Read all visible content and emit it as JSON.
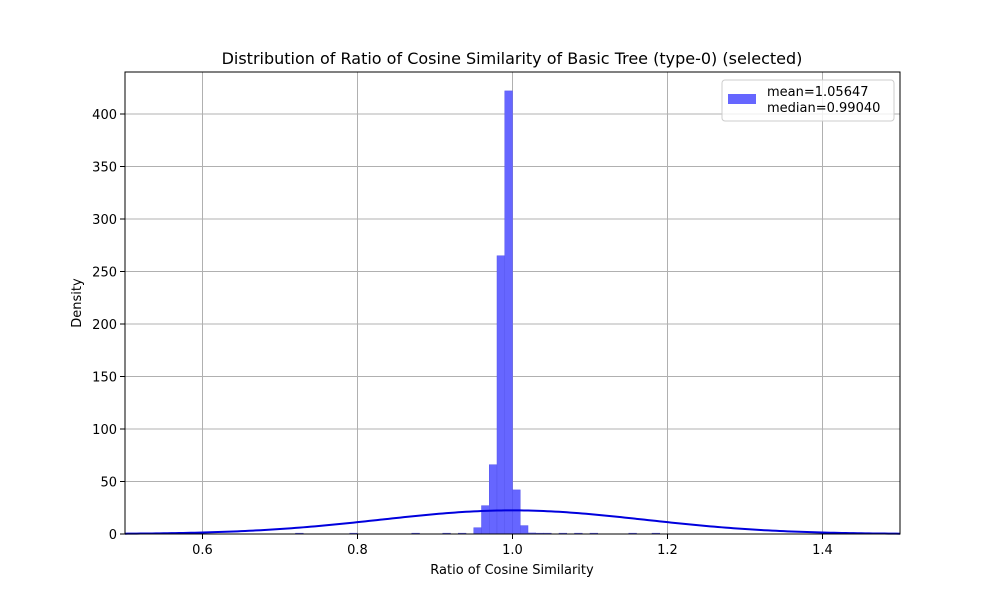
{
  "chart_data": {
    "type": "bar",
    "title": "Distribution of Ratio of Cosine Similarity of Basic Tree (type-0) (selected)",
    "xlabel": "Ratio of Cosine Similarity",
    "ylabel": "Density",
    "xlim": [
      0.5,
      1.5
    ],
    "ylim": [
      0,
      440
    ],
    "xticks": [
      0.6,
      0.8,
      1.0,
      1.2,
      1.4
    ],
    "xtick_labels": [
      "0.6",
      "0.8",
      "1.0",
      "1.2",
      "1.4"
    ],
    "yticks": [
      0,
      50,
      100,
      150,
      200,
      250,
      300,
      350,
      400
    ],
    "ytick_labels": [
      "0",
      "50",
      "100",
      "150",
      "200",
      "250",
      "300",
      "350",
      "400"
    ],
    "grid": true,
    "legend_position": "top-right",
    "legend": [
      {
        "label": "mean=1.05647\nmedian=0.99040",
        "color": "#6666ff"
      }
    ],
    "histogram": {
      "color": "#6666ff",
      "edge_color": "#5555ee",
      "bin_width": 0.01,
      "bins": [
        {
          "x0": 0.72,
          "value": 0.8
        },
        {
          "x0": 0.79,
          "value": 0.8
        },
        {
          "x0": 0.87,
          "value": 0.8
        },
        {
          "x0": 0.91,
          "value": 0.8
        },
        {
          "x0": 0.93,
          "value": 0.8
        },
        {
          "x0": 0.95,
          "value": 6
        },
        {
          "x0": 0.96,
          "value": 27
        },
        {
          "x0": 0.97,
          "value": 66
        },
        {
          "x0": 0.98,
          "value": 265
        },
        {
          "x0": 0.99,
          "value": 422
        },
        {
          "x0": 1.0,
          "value": 42
        },
        {
          "x0": 1.01,
          "value": 8
        },
        {
          "x0": 1.02,
          "value": 1
        },
        {
          "x0": 1.03,
          "value": 0.8
        },
        {
          "x0": 1.04,
          "value": 0.8
        },
        {
          "x0": 1.06,
          "value": 0.8
        },
        {
          "x0": 1.08,
          "value": 0.8
        },
        {
          "x0": 1.1,
          "value": 0.8
        },
        {
          "x0": 1.15,
          "value": 0.8
        },
        {
          "x0": 1.18,
          "value": 0.8
        }
      ]
    },
    "curve": {
      "color": "#0000dd",
      "kind": "normal",
      "mean": 1.0,
      "std": 0.17,
      "peak": 22.5
    }
  }
}
